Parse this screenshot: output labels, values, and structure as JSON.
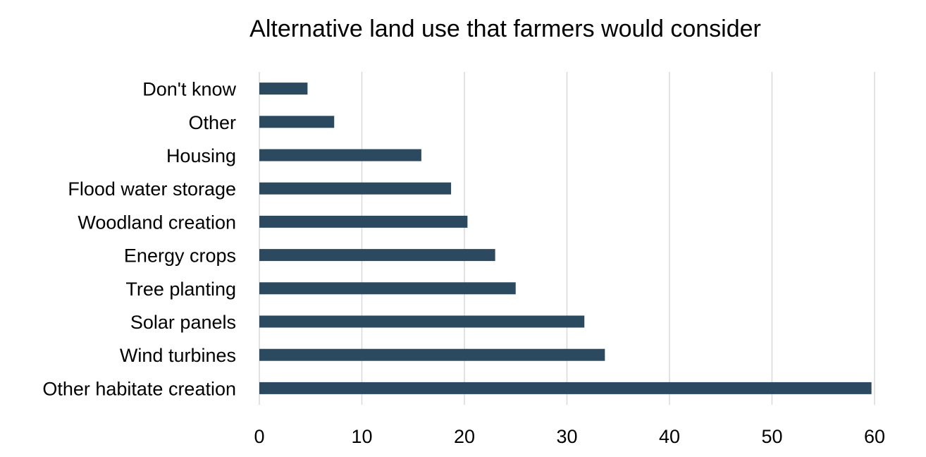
{
  "chart_data": {
    "type": "bar",
    "orientation": "horizontal",
    "title": "Alternative land use that farmers would consider",
    "xlabel": "",
    "ylabel": "",
    "categories": [
      "Don't know",
      "Other",
      "Housing",
      "Flood water storage",
      "Woodland creation",
      "Energy crops",
      "Tree planting",
      "Solar panels",
      "Wind turbines",
      "Other habitate creation"
    ],
    "values": [
      4.7,
      7.3,
      15.8,
      18.7,
      20.3,
      23.0,
      25.0,
      31.7,
      33.7,
      59.7
    ],
    "xlim": [
      0,
      60
    ],
    "xticks": [
      "0",
      "10",
      "20",
      "30",
      "40",
      "50",
      "60"
    ],
    "grid": "vertical",
    "legend": "none",
    "bar_color": "#2b4a60",
    "grid_color": "#d9d9d9"
  }
}
